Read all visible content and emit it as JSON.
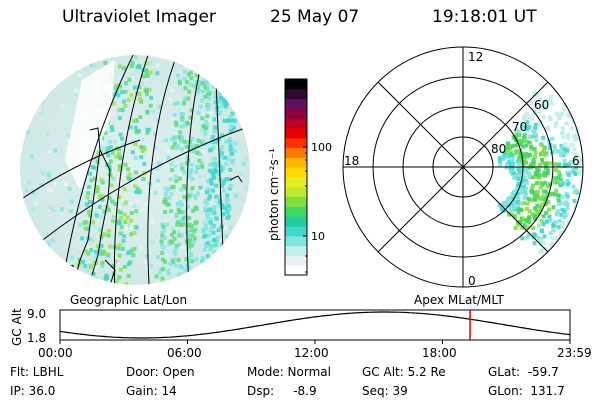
{
  "header": {
    "instrument": "Ultraviolet Imager",
    "date": "25 May 07",
    "time": "19:18:01 UT"
  },
  "colorbar": {
    "unit_label": "photon cm⁻²s⁻¹",
    "ticks": [
      "100",
      "10"
    ],
    "colors": [
      "#ffffff",
      "#e6f2f2",
      "#bff0ee",
      "#7fe6df",
      "#40d7cc",
      "#1fcf9a",
      "#40d860",
      "#7fe040",
      "#bfea30",
      "#e6f020",
      "#ffdc00",
      "#ffb400",
      "#ff7800",
      "#ff3000",
      "#e80000",
      "#c00020",
      "#900040",
      "#601060",
      "#300830",
      "#000000"
    ]
  },
  "left_panel": {
    "label": "Geographic Lat/Lon"
  },
  "right_panel": {
    "label": "Apex  MLat/MLT",
    "mlt_labels": {
      "top": "12",
      "left": "18",
      "right": "6",
      "bottom": "0"
    },
    "lat_labels": [
      "60",
      "70",
      "80"
    ]
  },
  "timeline": {
    "y_label": "GC Alt",
    "y_ticks": [
      "9.0",
      "1.8"
    ],
    "x_ticks": [
      "00:00",
      "06:00",
      "12:00",
      "18:00",
      "23:59"
    ],
    "current_time_fraction": 0.804,
    "marker_color": "#e00000"
  },
  "info": {
    "filter": "Flt: LBHL",
    "ip": "IP: 36.0",
    "door": "Door: Open",
    "gain": "Gain: 14",
    "mode": "Mode: Normal",
    "dsp": "Dsp:     -8.9",
    "gc_alt": "GC Alt: 5.2 Re",
    "seq": "Seq: 39",
    "glat": "GLat:  -59.7",
    "glon": "GLon:  131.7"
  }
}
